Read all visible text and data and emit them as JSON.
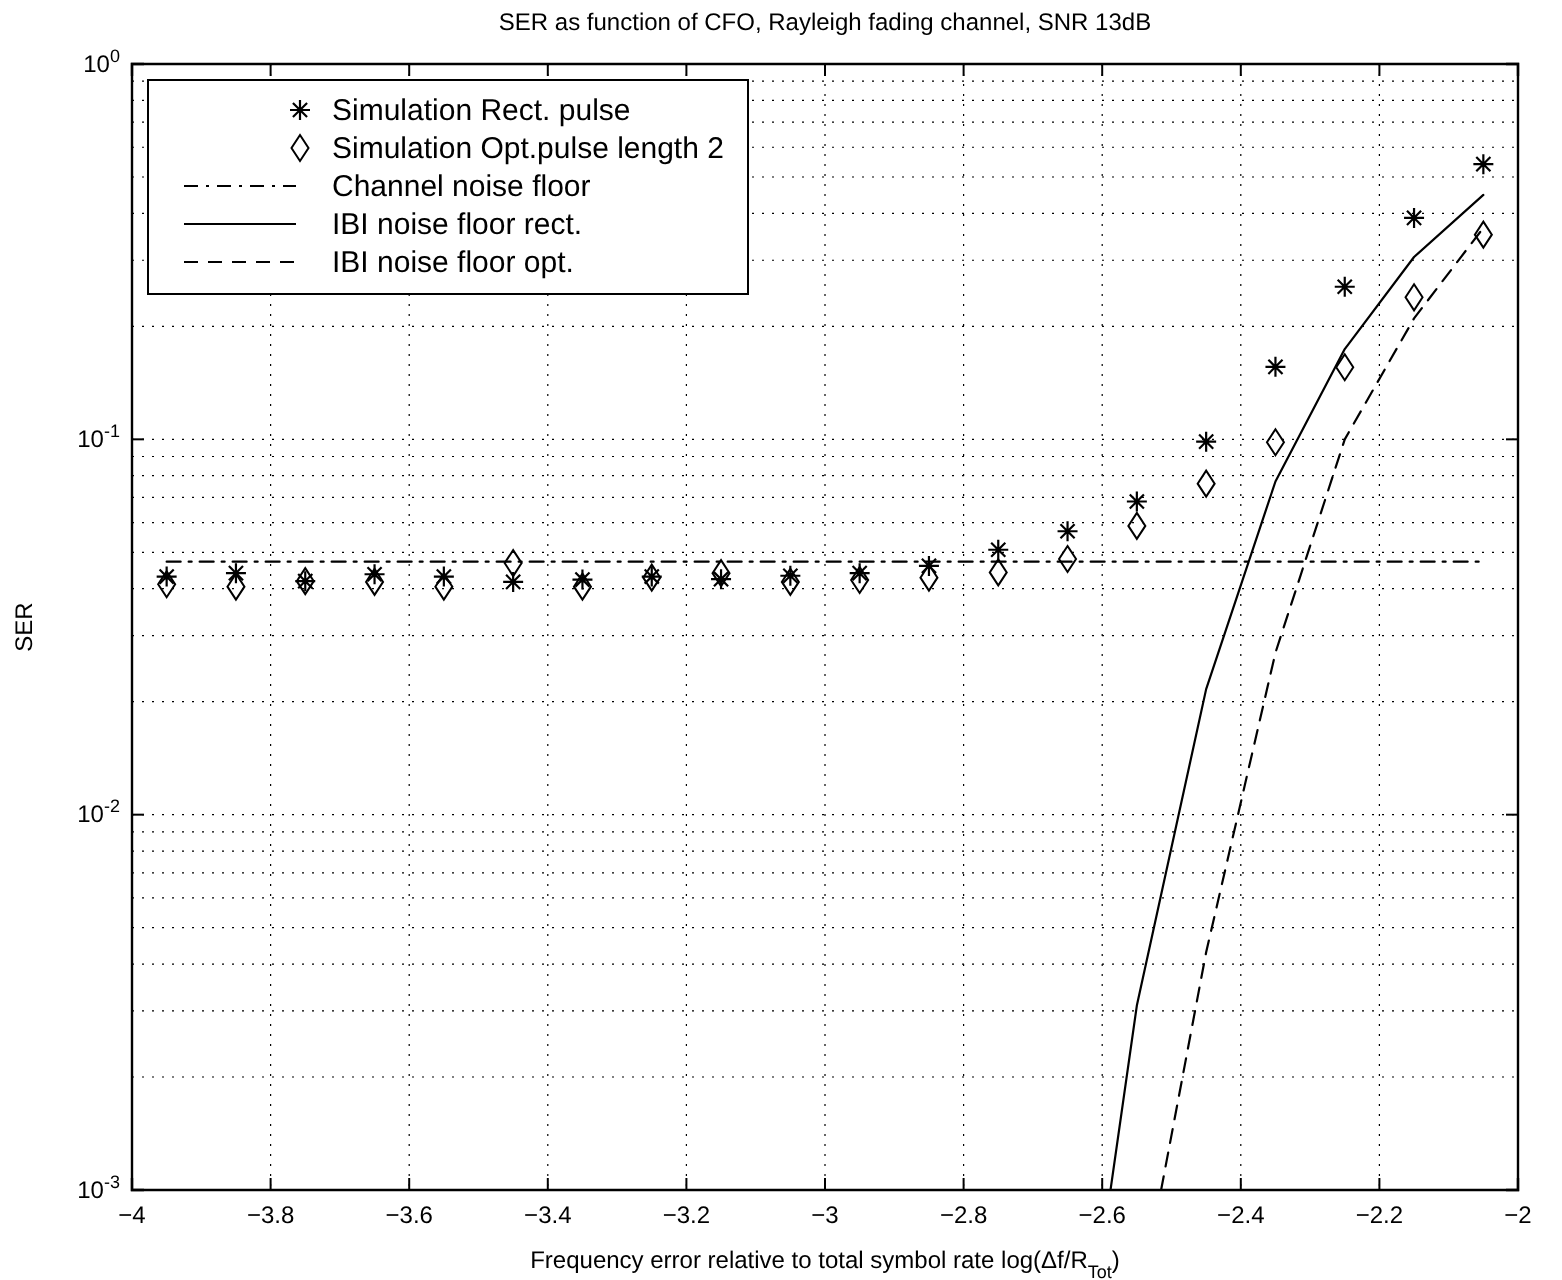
{
  "chart_data": {
    "type": "scatter",
    "title": "SER as function of CFO, Rayleigh fading channel, SNR 13dB",
    "xlabel": "Frequency error relative to total symbol rate log(Δf/R$_{Tot}$)",
    "ylabel": "SER",
    "log": "y",
    "grid": true,
    "legend": "top left",
    "xlim": [
      -4,
      -2
    ],
    "xticks": [
      -4,
      -3.8,
      -3.6,
      -3.4,
      -3.2,
      -3,
      -2.8,
      -2.6,
      -2.4,
      -2.2,
      -2
    ],
    "ylim": [
      0.001,
      1
    ],
    "yticks": [
      {
        "value": 0.001,
        "label": "10$^{-3}$"
      },
      {
        "value": 0.01,
        "label": "10$^{-2}$"
      },
      {
        "value": 0.1,
        "label": "10$^{-1}$"
      },
      {
        "value": 1,
        "label": "10$^{0}$"
      }
    ],
    "x": [
      -3.95,
      -3.85,
      -3.75,
      -3.65,
      -3.55,
      -3.45,
      -3.35,
      -3.25,
      -3.15,
      -3.05,
      -2.95,
      -2.85,
      -2.75,
      -2.65,
      -2.55,
      -2.45,
      -2.35,
      -2.25,
      -2.15,
      -2.05
    ],
    "series": [
      {
        "name": "Simulation Rect. pulse",
        "marker": "cross",
        "color": "#000000",
        "values": [
          0.0431,
          0.044,
          0.0419,
          0.0437,
          0.0431,
          0.0417,
          0.0423,
          0.0431,
          0.0424,
          0.0433,
          0.044,
          0.046,
          0.0508,
          0.0569,
          0.0683,
          0.0986,
          0.156,
          0.255,
          0.389,
          0.541
        ]
      },
      {
        "name": "Simulation Opt.pulse length 2",
        "marker": "diamond",
        "color": "#000000",
        "values": [
          0.0411,
          0.0405,
          0.0419,
          0.0417,
          0.0405,
          0.0468,
          0.0405,
          0.0428,
          0.044,
          0.0417,
          0.0422,
          0.0428,
          0.0442,
          0.048,
          0.0588,
          0.0762,
          0.0982,
          0.1556,
          0.239,
          0.351
        ]
      },
      {
        "name": "Channel noise floor",
        "type": "line",
        "line_style": "dashdot",
        "marker": "none",
        "color": "#000000",
        "x": [
          -3.95,
          -2.05
        ],
        "values": [
          0.0472,
          0.0472
        ]
      },
      {
        "name": "IBI noise floor rect.",
        "type": "line",
        "line_style": "solid",
        "marker": "none",
        "color": "#000000",
        "x": [
          -2.588,
          -2.55,
          -2.45,
          -2.35,
          -2.25,
          -2.15,
          -2.05
        ],
        "values": [
          0.001,
          0.0031,
          0.0216,
          0.0772,
          0.174,
          0.306,
          0.448
        ]
      },
      {
        "name": "IBI noise floor opt.",
        "type": "line",
        "line_style": "dashed",
        "marker": "none",
        "color": "#000000",
        "x": [
          -2.515,
          -2.45,
          -2.35,
          -2.25,
          -2.15,
          -2.05
        ],
        "values": [
          0.001,
          0.0043,
          0.027,
          0.1,
          0.21,
          0.366
        ]
      }
    ]
  }
}
